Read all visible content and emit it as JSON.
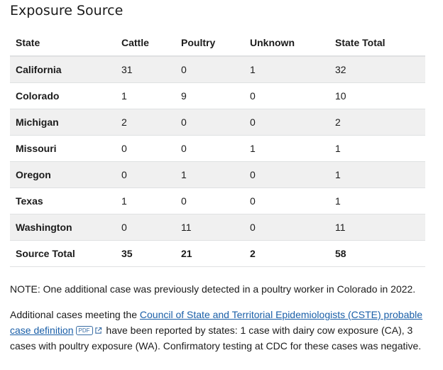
{
  "section_title": "Exposure Source",
  "table": {
    "headers": [
      "State",
      "Cattle",
      "Poultry",
      "Unknown",
      "State Total"
    ],
    "rows": [
      [
        "California",
        "31",
        "0",
        "1",
        "32"
      ],
      [
        "Colorado",
        "1",
        "9",
        "0",
        "10"
      ],
      [
        "Michigan",
        "2",
        "0",
        "0",
        "2"
      ],
      [
        "Missouri",
        "0",
        "0",
        "1",
        "1"
      ],
      [
        "Oregon",
        "0",
        "1",
        "0",
        "1"
      ],
      [
        "Texas",
        "1",
        "0",
        "0",
        "1"
      ],
      [
        "Washington",
        "0",
        "11",
        "0",
        "11"
      ]
    ],
    "footer": [
      "Source Total",
      "35",
      "21",
      "2",
      "58"
    ]
  },
  "note": "NOTE: One additional case was previously detected in a poultry worker in Colorado in 2022.",
  "paragraph": {
    "prefix": "Additional cases meeting the ",
    "link_text": "Council of State and Territorial Epidemiologists (CSTE) probable case definition",
    "pdf_label": "PDF",
    "suffix": " have been reported by states: 1 case with dairy cow exposure (CA), 3 cases with poultry exposure (WA). Confirmatory testing at CDC for these cases was negative."
  },
  "icons": {
    "external_link": "external-link-icon",
    "pdf": "pdf-badge"
  },
  "colors": {
    "link": "#1a5fa8",
    "stripe": "#f0f0f0",
    "border": "#dfe1e2"
  }
}
